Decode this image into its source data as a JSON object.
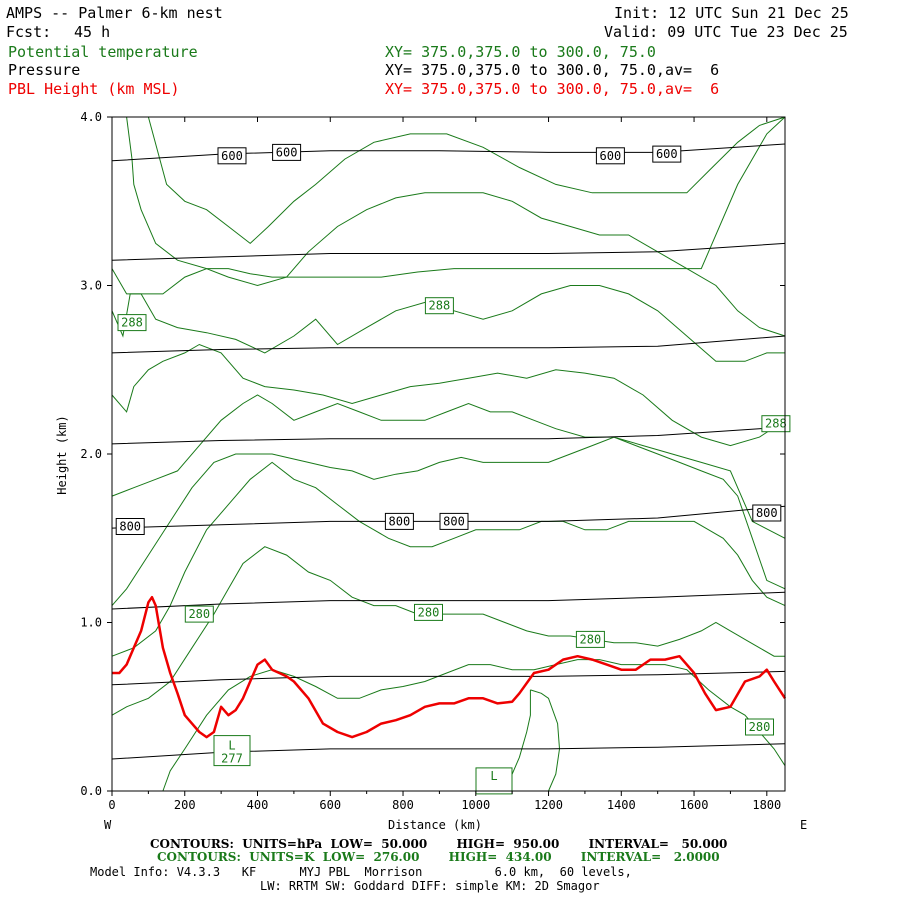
{
  "header": {
    "model": "AMPS -- Palmer 6-km nest",
    "fcst_label": "Fcst:",
    "fcst_value": "45 h",
    "init": "Init: 12 UTC Sun 21 Dec 25",
    "valid": "Valid: 09 UTC Tue 23 Dec 25",
    "field1": "Potential temperature",
    "field1_xy": "XY= 375.0,375.0 to 300.0, 75.0",
    "field2": "Pressure",
    "field2_xy": "XY= 375.0,375.0 to 300.0, 75.0,av=  6",
    "field3": "PBL Height (km MSL)",
    "field3_xy": "XY= 375.0,375.0 to 300.0, 75.0,av=  6"
  },
  "colors": {
    "theta": "#1a7a1a",
    "pressure": "#000000",
    "pbl": "#ee0000"
  },
  "chart_data": {
    "type": "line",
    "xlabel": "Distance (km)",
    "ylabel": "Height (km)",
    "xlim": [
      0,
      1850
    ],
    "ylim": [
      0.0,
      4.0
    ],
    "x_ticks": [
      0,
      200,
      400,
      600,
      800,
      1000,
      1200,
      1400,
      1600,
      1800
    ],
    "y_ticks": [
      0.0,
      1.0,
      2.0,
      3.0,
      4.0
    ],
    "x_tick_labels": [
      "0",
      "200",
      "400",
      "600",
      "800",
      "1000",
      "1200",
      "1400",
      "1600",
      "1800"
    ],
    "y_tick_labels": [
      "0.0",
      "1.0",
      "2.0",
      "3.0",
      "4.0"
    ],
    "west_label": "W",
    "east_label": "E",
    "pressure_isobars": [
      {
        "x": [
          0,
          300,
          600,
          900,
          1200,
          1500,
          1850
        ],
        "y": [
          3.74,
          3.78,
          3.8,
          3.8,
          3.79,
          3.79,
          3.84
        ]
      },
      {
        "x": [
          0,
          300,
          600,
          900,
          1200,
          1500,
          1850
        ],
        "y": [
          3.15,
          3.17,
          3.19,
          3.19,
          3.19,
          3.2,
          3.25
        ]
      },
      {
        "x": [
          0,
          300,
          600,
          900,
          1200,
          1500,
          1850
        ],
        "y": [
          2.6,
          2.62,
          2.63,
          2.63,
          2.63,
          2.64,
          2.7
        ]
      },
      {
        "x": [
          0,
          300,
          600,
          900,
          1200,
          1500,
          1850
        ],
        "y": [
          2.06,
          2.08,
          2.09,
          2.09,
          2.09,
          2.11,
          2.16
        ]
      },
      {
        "x": [
          0,
          300,
          600,
          900,
          1200,
          1500,
          1850
        ],
        "y": [
          1.56,
          1.58,
          1.6,
          1.6,
          1.6,
          1.62,
          1.69
        ]
      },
      {
        "x": [
          0,
          300,
          600,
          900,
          1200,
          1500,
          1850
        ],
        "y": [
          1.08,
          1.11,
          1.13,
          1.13,
          1.13,
          1.15,
          1.18
        ]
      },
      {
        "x": [
          0,
          300,
          600,
          900,
          1200,
          1500,
          1850
        ],
        "y": [
          0.63,
          0.66,
          0.68,
          0.68,
          0.68,
          0.69,
          0.71
        ]
      },
      {
        "x": [
          0,
          300,
          600,
          900,
          1200,
          1500,
          1850
        ],
        "y": [
          0.19,
          0.23,
          0.25,
          0.25,
          0.25,
          0.26,
          0.28
        ]
      }
    ],
    "theta_contours": [
      {
        "x": [
          40,
          55,
          60,
          80,
          120,
          180,
          260,
          320,
          380,
          440,
          540,
          640,
          740,
          840,
          940,
          1060,
          1180,
          1300,
          1420,
          1520,
          1620,
          1720,
          1800,
          1850
        ],
        "y": [
          4.0,
          3.75,
          3.6,
          3.45,
          3.25,
          3.15,
          3.1,
          3.1,
          3.07,
          3.05,
          3.05,
          3.05,
          3.05,
          3.08,
          3.1,
          3.1,
          3.1,
          3.1,
          3.1,
          3.1,
          3.1,
          3.6,
          3.9,
          4.0
        ]
      },
      {
        "x": [
          100,
          150,
          200,
          260,
          320,
          380,
          430,
          500,
          560,
          640,
          720,
          820,
          920,
          1020,
          1120,
          1220,
          1320,
          1400,
          1500,
          1580,
          1650,
          1720,
          1780,
          1850
        ],
        "y": [
          4.0,
          3.6,
          3.5,
          3.45,
          3.35,
          3.25,
          3.35,
          3.5,
          3.6,
          3.75,
          3.85,
          3.9,
          3.9,
          3.82,
          3.7,
          3.6,
          3.55,
          3.55,
          3.55,
          3.55,
          3.7,
          3.85,
          3.95,
          4.0
        ]
      },
      {
        "x": [
          0,
          40,
          80,
          140,
          200,
          260,
          320,
          400,
          480,
          540,
          620,
          700,
          780,
          860,
          940,
          1020,
          1100,
          1180,
          1260,
          1340,
          1420,
          1500,
          1580,
          1660,
          1720,
          1780,
          1850
        ],
        "y": [
          3.1,
          2.95,
          2.95,
          2.95,
          3.05,
          3.1,
          3.05,
          3.0,
          3.05,
          3.2,
          3.35,
          3.45,
          3.52,
          3.55,
          3.55,
          3.55,
          3.5,
          3.4,
          3.35,
          3.3,
          3.3,
          3.2,
          3.1,
          3.0,
          2.85,
          2.75,
          2.7
        ]
      },
      {
        "x": [
          0,
          30,
          50,
          80,
          120,
          180,
          260,
          340,
          420,
          500,
          560,
          620,
          700,
          780,
          860,
          940,
          1020,
          1100,
          1180,
          1260,
          1340,
          1420,
          1500,
          1580,
          1660,
          1740,
          1800,
          1850
        ],
        "y": [
          2.85,
          2.7,
          2.95,
          2.95,
          2.8,
          2.75,
          2.72,
          2.68,
          2.6,
          2.7,
          2.8,
          2.65,
          2.75,
          2.85,
          2.9,
          2.85,
          2.8,
          2.85,
          2.95,
          3.0,
          3.0,
          2.95,
          2.85,
          2.7,
          2.55,
          2.55,
          2.6,
          2.6
        ]
      },
      {
        "x": [
          0,
          40,
          60,
          100,
          140,
          200,
          240,
          300,
          360,
          420,
          500,
          580,
          660,
          740,
          820,
          900,
          980,
          1060,
          1140,
          1220,
          1300,
          1380,
          1460,
          1540,
          1620,
          1700,
          1780,
          1850
        ],
        "y": [
          2.35,
          2.25,
          2.4,
          2.5,
          2.55,
          2.6,
          2.65,
          2.6,
          2.45,
          2.4,
          2.38,
          2.35,
          2.3,
          2.35,
          2.4,
          2.42,
          2.45,
          2.48,
          2.45,
          2.5,
          2.48,
          2.45,
          2.35,
          2.2,
          2.1,
          2.05,
          2.1,
          2.2
        ]
      },
      {
        "x": [
          0,
          60,
          120,
          180,
          240,
          300,
          360,
          400,
          440,
          500,
          560,
          620,
          680,
          740,
          800,
          860,
          920,
          980,
          1040,
          1100,
          1160,
          1220,
          1300,
          1380,
          1460,
          1540,
          1620,
          1700,
          1760,
          1850
        ],
        "y": [
          1.75,
          1.8,
          1.85,
          1.9,
          2.05,
          2.2,
          2.3,
          2.35,
          2.3,
          2.2,
          2.25,
          2.3,
          2.25,
          2.2,
          2.2,
          2.2,
          2.25,
          2.3,
          2.25,
          2.25,
          2.2,
          2.15,
          2.1,
          2.1,
          2.05,
          2.0,
          1.95,
          1.9,
          1.6,
          1.5
        ]
      },
      {
        "x": [
          0,
          40,
          100,
          160,
          220,
          280,
          340,
          400,
          440,
          480,
          540,
          600,
          660,
          720,
          780,
          840,
          900,
          960,
          1020,
          1080,
          1140,
          1200,
          1260,
          1320,
          1380,
          1440,
          1500,
          1560,
          1620,
          1680,
          1720,
          1760,
          1800,
          1850
        ],
        "y": [
          1.1,
          1.2,
          1.4,
          1.6,
          1.8,
          1.95,
          2.0,
          2.0,
          2.0,
          1.98,
          1.95,
          1.92,
          1.9,
          1.85,
          1.88,
          1.9,
          1.95,
          1.98,
          1.95,
          1.95,
          1.95,
          1.95,
          2.0,
          2.05,
          2.1,
          2.05,
          2.0,
          1.95,
          1.9,
          1.85,
          1.75,
          1.5,
          1.25,
          1.2
        ]
      },
      {
        "x": [
          0,
          60,
          120,
          160,
          200,
          260,
          320,
          380,
          440,
          500,
          560,
          620,
          680,
          720,
          760,
          820,
          880,
          940,
          1000,
          1060,
          1120,
          1180,
          1240,
          1300,
          1360,
          1420,
          1480,
          1540,
          1600,
          1640,
          1680,
          1720,
          1760,
          1800,
          1850
        ],
        "y": [
          0.8,
          0.85,
          0.95,
          1.1,
          1.3,
          1.55,
          1.7,
          1.85,
          1.95,
          1.85,
          1.8,
          1.7,
          1.6,
          1.55,
          1.5,
          1.45,
          1.45,
          1.5,
          1.55,
          1.55,
          1.55,
          1.6,
          1.6,
          1.55,
          1.55,
          1.6,
          1.6,
          1.6,
          1.6,
          1.55,
          1.5,
          1.4,
          1.25,
          1.15,
          1.1
        ]
      },
      {
        "x": [
          0,
          40,
          100,
          160,
          220,
          280,
          320,
          360,
          420,
          480,
          540,
          600,
          660,
          720,
          780,
          840,
          900,
          960,
          1020,
          1080,
          1140,
          1200,
          1260,
          1320,
          1380,
          1440,
          1500,
          1560,
          1620,
          1660,
          1700,
          1740,
          1780,
          1820,
          1850
        ],
        "y": [
          0.45,
          0.5,
          0.55,
          0.65,
          0.85,
          1.05,
          1.2,
          1.35,
          1.45,
          1.4,
          1.3,
          1.25,
          1.15,
          1.1,
          1.1,
          1.05,
          1.05,
          1.05,
          1.05,
          1.0,
          0.95,
          0.92,
          0.92,
          0.9,
          0.88,
          0.88,
          0.86,
          0.9,
          0.95,
          1.0,
          0.95,
          0.9,
          0.85,
          0.8,
          0.8
        ]
      },
      {
        "x": [
          140,
          160,
          200,
          260,
          320,
          380,
          440,
          500,
          560,
          620,
          680,
          740,
          800,
          860,
          920,
          980,
          1040,
          1100,
          1160,
          1220,
          1280,
          1340,
          1400,
          1460,
          1520,
          1580,
          1640,
          1700,
          1740,
          1780,
          1820,
          1850
        ],
        "y": [
          0.0,
          0.12,
          0.25,
          0.45,
          0.6,
          0.68,
          0.72,
          0.68,
          0.62,
          0.55,
          0.55,
          0.6,
          0.62,
          0.65,
          0.7,
          0.75,
          0.75,
          0.72,
          0.72,
          0.75,
          0.78,
          0.78,
          0.75,
          0.75,
          0.75,
          0.72,
          0.6,
          0.5,
          0.45,
          0.35,
          0.25,
          0.15
        ]
      },
      {
        "x": [
          1080,
          1120,
          1140,
          1150,
          1150
        ],
        "y": [
          0.0,
          0.2,
          0.35,
          0.45,
          0.6
        ]
      },
      {
        "x": [
          1200,
          1220,
          1230,
          1225,
          1200,
          1180,
          1150
        ],
        "y": [
          0.0,
          0.1,
          0.25,
          0.4,
          0.55,
          0.58,
          0.6
        ]
      }
    ],
    "pbl_height": {
      "x": [
        0,
        20,
        40,
        60,
        80,
        100,
        110,
        120,
        140,
        160,
        180,
        200,
        220,
        240,
        260,
        280,
        300,
        320,
        340,
        360,
        380,
        400,
        420,
        440,
        460,
        480,
        500,
        540,
        580,
        620,
        660,
        700,
        740,
        780,
        820,
        860,
        900,
        940,
        980,
        1020,
        1060,
        1100,
        1120,
        1160,
        1200,
        1240,
        1280,
        1320,
        1360,
        1400,
        1440,
        1480,
        1520,
        1560,
        1600,
        1630,
        1660,
        1700,
        1740,
        1780,
        1800,
        1820,
        1850
      ],
      "y": [
        0.7,
        0.7,
        0.75,
        0.85,
        0.95,
        1.12,
        1.15,
        1.1,
        0.85,
        0.7,
        0.58,
        0.45,
        0.4,
        0.35,
        0.32,
        0.35,
        0.5,
        0.45,
        0.48,
        0.55,
        0.65,
        0.75,
        0.78,
        0.72,
        0.7,
        0.68,
        0.65,
        0.55,
        0.4,
        0.35,
        0.32,
        0.35,
        0.4,
        0.42,
        0.45,
        0.5,
        0.52,
        0.52,
        0.55,
        0.55,
        0.52,
        0.53,
        0.58,
        0.7,
        0.72,
        0.78,
        0.8,
        0.78,
        0.75,
        0.72,
        0.72,
        0.78,
        0.78,
        0.8,
        0.7,
        0.58,
        0.48,
        0.5,
        0.65,
        0.68,
        0.72,
        0.65,
        0.55
      ]
    },
    "isobar_labels": [
      {
        "text": "600",
        "x": 330,
        "y": 3.77
      },
      {
        "text": "600",
        "x": 480,
        "y": 3.79
      },
      {
        "text": "600",
        "x": 1370,
        "y": 3.77
      },
      {
        "text": "600",
        "x": 1525,
        "y": 3.78
      },
      {
        "text": "800",
        "x": 50,
        "y": 1.57
      },
      {
        "text": "800",
        "x": 790,
        "y": 1.6
      },
      {
        "text": "800",
        "x": 940,
        "y": 1.6
      },
      {
        "text": "800",
        "x": 1800,
        "y": 1.65
      }
    ],
    "theta_labels": [
      {
        "text": "288",
        "x": 55,
        "y": 2.78
      },
      {
        "text": "288",
        "x": 900,
        "y": 2.88
      },
      {
        "text": "288",
        "x": 1825,
        "y": 2.18
      },
      {
        "text": "280",
        "x": 240,
        "y": 1.05
      },
      {
        "text": "280",
        "x": 870,
        "y": 1.06
      },
      {
        "text": "280",
        "x": 1315,
        "y": 0.9
      },
      {
        "text": "280",
        "x": 1780,
        "y": 0.38
      }
    ],
    "low_markers": [
      {
        "label": "L",
        "value": "277",
        "x": 330,
        "y": 0.24
      },
      {
        "label": "L",
        "value": "",
        "x": 1050,
        "y": 0.06
      }
    ]
  },
  "footer": {
    "p_contours": "CONTOURS:  UNITS=hPa  LOW=  50.000       HIGH=  950.00       INTERVAL=   50.000",
    "t_contours": "CONTOURS:  UNITS=K  LOW=  276.00       HIGH=  434.00       INTERVAL=   2.0000",
    "model_info": "Model Info: V4.3.3   KF      MYJ PBL  Morrison          6.0 km,  60 levels,",
    "physics": "LW: RRTM SW: Goddard DIFF: simple KM: 2D Smagor"
  }
}
